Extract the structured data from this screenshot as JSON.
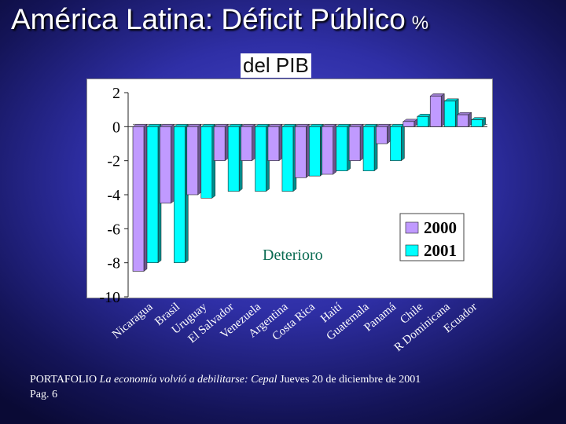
{
  "header": {
    "title": "América Latina: Déficit Público",
    "title_suffix": "%"
  },
  "source": {
    "outlet": "PORTAFOLIO",
    "article": "La economía volvió a debilitarse: Cepal",
    "date": "Jueves 20 de diciembre de 2001",
    "page": "Pag. 6"
  },
  "colors": {
    "series_2000": "#c09aff",
    "series_2001": "#00ffff",
    "annotation": "#0a6b52"
  },
  "chart_data": {
    "type": "bar",
    "title": "del PIB",
    "xlabel": "",
    "ylabel": "",
    "ylim": [
      -10,
      2
    ],
    "yticks": [
      2,
      0,
      -2,
      -4,
      -6,
      -8,
      -10
    ],
    "categories": [
      "Nicaragua",
      "Brasil",
      "Uruguay",
      "El Salvador",
      "Venezuela",
      "Argentina",
      "Costa Rica",
      "Haití",
      "Guatemala",
      "Panamá",
      "Chile",
      "R Dominicana",
      "Ecuador"
    ],
    "series": [
      {
        "name": "2000",
        "values": [
          -8.5,
          -4.5,
          -4.0,
          -2.0,
          -2.0,
          -2.0,
          -3.0,
          -2.8,
          -2.0,
          -1.0,
          0.3,
          1.8,
          0.7
        ]
      },
      {
        "name": "2001",
        "values": [
          -8.0,
          -8.0,
          -4.2,
          -3.8,
          -3.8,
          -3.8,
          -2.9,
          -2.6,
          -2.6,
          -2.0,
          0.6,
          1.5,
          0.4
        ]
      }
    ],
    "legend": {
      "position": "bottom-right",
      "entries": [
        "2000",
        "2001"
      ]
    },
    "annotation": "Deterioro",
    "grid": false
  }
}
